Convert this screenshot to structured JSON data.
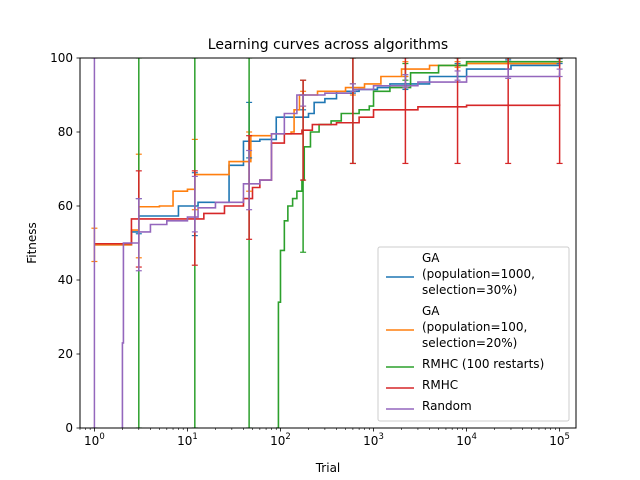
{
  "chart_data": {
    "type": "line",
    "title": "Learning curves across algorithms",
    "xlabel": "Trial",
    "ylabel": "Fitness",
    "xscale": "log",
    "xlim": [
      0.7,
      150000
    ],
    "ylim": [
      0,
      100
    ],
    "x_ticks": [
      1,
      10,
      100,
      1000,
      10000,
      100000
    ],
    "x_tick_labels": [
      {
        "base": "10",
        "exp": "0"
      },
      {
        "base": "10",
        "exp": "1"
      },
      {
        "base": "10",
        "exp": "2"
      },
      {
        "base": "10",
        "exp": "3"
      },
      {
        "base": "10",
        "exp": "4"
      },
      {
        "base": "10",
        "exp": "5"
      }
    ],
    "y_ticks": [
      0,
      20,
      40,
      60,
      80,
      100
    ],
    "grid": false,
    "legend_position": "lower right",
    "series": [
      {
        "name": "GA\n(population=1000,\nselection=30%)",
        "color": "#1f77b4",
        "points": [
          [
            1,
            49.5
          ],
          [
            2.5,
            53
          ],
          [
            3,
            57.3
          ],
          [
            7,
            57.3
          ],
          [
            8,
            60
          ],
          [
            12,
            60
          ],
          [
            13,
            61
          ],
          [
            22,
            61
          ],
          [
            28,
            71
          ],
          [
            38,
            71
          ],
          [
            40,
            77.5
          ],
          [
            55,
            77.5
          ],
          [
            60,
            78
          ],
          [
            85,
            78
          ],
          [
            90,
            84
          ],
          [
            200,
            85
          ],
          [
            230,
            88
          ],
          [
            300,
            89
          ],
          [
            400,
            91
          ],
          [
            700,
            91.5
          ],
          [
            1100,
            92
          ],
          [
            1500,
            93
          ],
          [
            4000,
            95
          ],
          [
            10000,
            97
          ],
          [
            30000,
            98
          ],
          [
            100000,
            99
          ]
        ],
        "error_bars": [
          [
            3,
            52.5,
            62
          ],
          [
            12,
            52,
            69
          ],
          [
            46,
            73,
            88
          ],
          [
            175,
            86,
            90
          ],
          [
            600,
            90.5,
            93
          ],
          [
            2200,
            91.5,
            95
          ],
          [
            8000,
            95,
            98.5
          ],
          [
            28000,
            97,
            99.5
          ],
          [
            100000,
            98.5,
            99.8
          ]
        ]
      },
      {
        "name": "GA\n(population=100,\nselection=20%)",
        "color": "#ff7f0e",
        "points": [
          [
            1,
            49.5
          ],
          [
            2.5,
            53.5
          ],
          [
            3,
            59.8
          ],
          [
            5,
            60
          ],
          [
            7,
            64
          ],
          [
            10,
            64.5
          ],
          [
            12,
            68.5
          ],
          [
            20,
            68.5
          ],
          [
            28,
            72
          ],
          [
            45,
            72
          ],
          [
            48,
            79
          ],
          [
            60,
            79
          ],
          [
            80,
            79.5
          ],
          [
            130,
            80
          ],
          [
            140,
            86
          ],
          [
            160,
            90
          ],
          [
            250,
            91
          ],
          [
            500,
            92
          ],
          [
            800,
            93
          ],
          [
            1200,
            95
          ],
          [
            2000,
            97
          ],
          [
            4000,
            98
          ],
          [
            10000,
            98.5
          ],
          [
            100000,
            99.5
          ]
        ],
        "error_bars": [
          [
            1,
            45,
            54
          ],
          [
            3,
            46,
            74
          ],
          [
            12,
            59,
            78
          ],
          [
            46,
            64,
            80
          ],
          [
            175,
            87,
            91
          ],
          [
            600,
            90,
            93
          ],
          [
            2200,
            95,
            99
          ],
          [
            8000,
            97.5,
            99
          ],
          [
            28000,
            98.5,
            100
          ],
          [
            100000,
            99,
            100
          ]
        ]
      },
      {
        "name": "RMHC (100 restarts)",
        "color": "#2ca02c",
        "points": [
          [
            90,
            0
          ],
          [
            95,
            34
          ],
          [
            100,
            48
          ],
          [
            110,
            56
          ],
          [
            120,
            60
          ],
          [
            135,
            62
          ],
          [
            150,
            64
          ],
          [
            170,
            67
          ],
          [
            180,
            76
          ],
          [
            210,
            80
          ],
          [
            260,
            82
          ],
          [
            350,
            83
          ],
          [
            450,
            85
          ],
          [
            700,
            86
          ],
          [
            900,
            87
          ],
          [
            1000,
            91
          ],
          [
            1500,
            92
          ],
          [
            2500,
            96
          ],
          [
            5000,
            98
          ],
          [
            10000,
            99
          ],
          [
            100000,
            100
          ]
        ],
        "error_bars": [
          [
            3,
            0,
            100
          ],
          [
            12,
            0,
            100
          ],
          [
            46,
            0,
            100
          ],
          [
            175,
            47.5,
            94
          ],
          [
            600,
            71.5,
            100
          ],
          [
            2200,
            94,
            98.5
          ],
          [
            8000,
            98,
            100
          ],
          [
            28000,
            99,
            100
          ],
          [
            100000,
            99,
            100
          ]
        ]
      },
      {
        "name": "RMHC",
        "color": "#d62728",
        "points": [
          [
            1,
            49.8
          ],
          [
            2.5,
            56.5
          ],
          [
            12,
            56.5
          ],
          [
            15,
            58
          ],
          [
            25,
            60
          ],
          [
            40,
            62
          ],
          [
            50,
            65
          ],
          [
            60,
            67
          ],
          [
            80,
            77
          ],
          [
            110,
            79.5
          ],
          [
            170,
            80.5
          ],
          [
            220,
            82
          ],
          [
            400,
            82.5
          ],
          [
            700,
            84
          ],
          [
            1000,
            86
          ],
          [
            3000,
            86.8
          ],
          [
            10000,
            87.2
          ],
          [
            100000,
            87.5
          ]
        ],
        "error_bars": [
          [
            3,
            43.5,
            69.5
          ],
          [
            12,
            44,
            69.5
          ],
          [
            46,
            51,
            79
          ],
          [
            175,
            67,
            94
          ],
          [
            600,
            71.5,
            100
          ],
          [
            2200,
            71.5,
            100
          ],
          [
            8000,
            71.5,
            100
          ],
          [
            28000,
            71.5,
            100
          ],
          [
            100000,
            71.5,
            100
          ]
        ]
      },
      {
        "name": "Random",
        "color": "#9467bd",
        "points": [
          [
            2,
            0
          ],
          [
            2,
            23
          ],
          [
            2.05,
            50
          ],
          [
            3,
            53
          ],
          [
            4,
            55
          ],
          [
            6,
            56
          ],
          [
            10,
            57
          ],
          [
            13,
            59.5
          ],
          [
            20,
            61
          ],
          [
            40,
            66
          ],
          [
            60,
            67
          ],
          [
            80,
            79.5
          ],
          [
            110,
            85
          ],
          [
            150,
            90
          ],
          [
            300,
            90.5
          ],
          [
            600,
            91.5
          ],
          [
            1000,
            92.5
          ],
          [
            3000,
            93.5
          ],
          [
            10000,
            95
          ],
          [
            100000,
            96
          ]
        ],
        "error_bars": [
          [
            1,
            0,
            100
          ],
          [
            3,
            42.5,
            62
          ],
          [
            12,
            53,
            68
          ],
          [
            46,
            59,
            75
          ],
          [
            175,
            87,
            90
          ],
          [
            600,
            91,
            93
          ],
          [
            2200,
            92,
            95.5
          ],
          [
            8000,
            94,
            96.5
          ],
          [
            28000,
            94.5,
            97
          ],
          [
            100000,
            95,
            97
          ]
        ]
      }
    ]
  }
}
